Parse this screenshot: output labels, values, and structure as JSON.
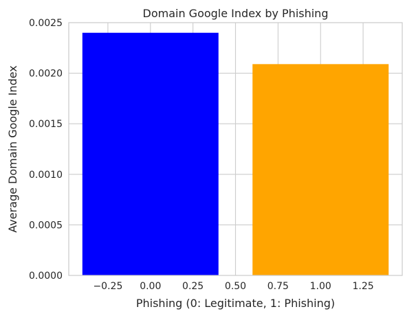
{
  "chart_data": {
    "type": "bar",
    "title": "Domain Google Index by Phishing",
    "xlabel": "Phishing (0: Legitimate, 1: Phishing)",
    "ylabel": "Average Domain Google Index",
    "x": [
      0,
      1
    ],
    "values": [
      0.0024,
      0.00209
    ],
    "bar_width": 0.8,
    "colors": [
      "#0000ff",
      "#ffa500"
    ],
    "xlim": [
      -0.48,
      1.48
    ],
    "ylim": [
      0,
      0.0025
    ],
    "xticks": [
      -0.25,
      0.0,
      0.25,
      0.5,
      0.75,
      1.0,
      1.25
    ],
    "xtick_labels": [
      "−0.25",
      "0.00",
      "0.25",
      "0.50",
      "0.75",
      "1.00",
      "1.25"
    ],
    "yticks": [
      0,
      0.0005,
      0.001,
      0.0015,
      0.002,
      0.0025
    ],
    "ytick_labels": [
      "0.0000",
      "0.0005",
      "0.0010",
      "0.0015",
      "0.0020",
      "0.0025"
    ],
    "grid": true,
    "legend": null
  }
}
